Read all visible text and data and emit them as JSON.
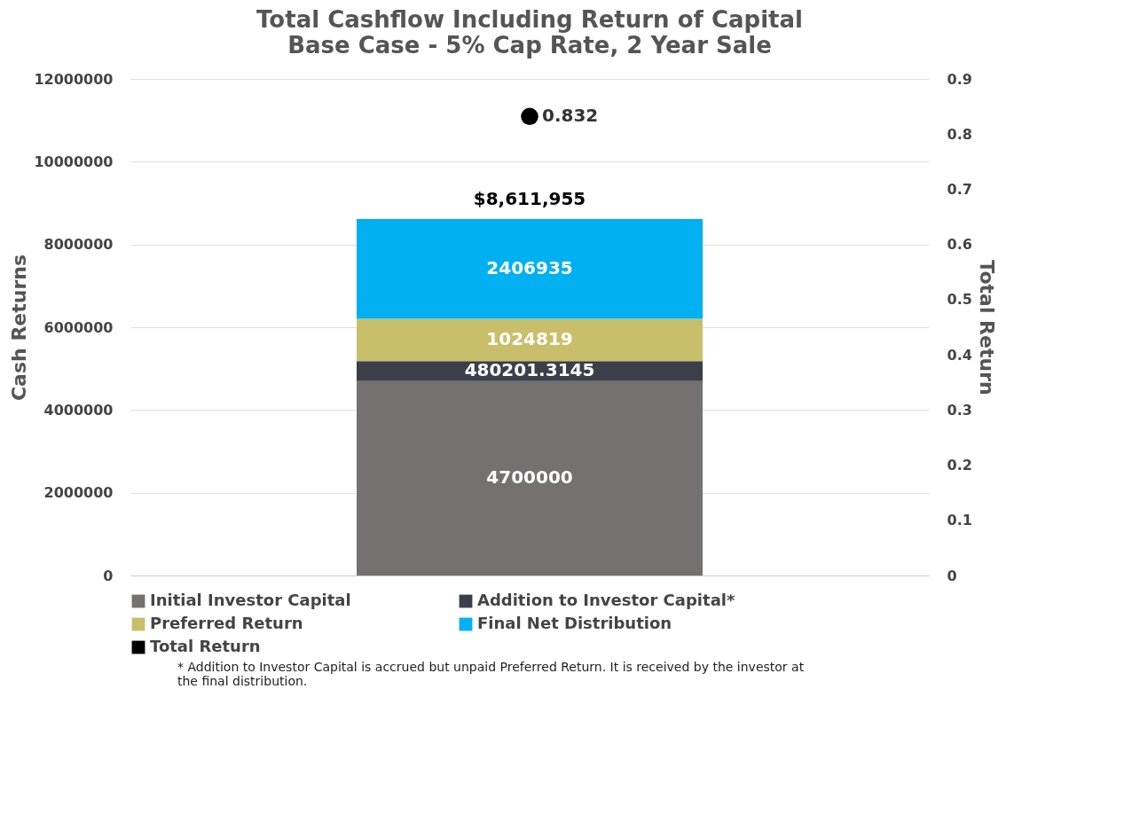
{
  "chart_data": {
    "type": "bar",
    "stacked": true,
    "title": "Total Cashflow Including Return of Capital",
    "subtitle": "Base Case - 5% Cap Rate, 2 Year Sale",
    "ylabel": "Cash Returns",
    "y2label": "Total Return",
    "categories": [
      null
    ],
    "series": [
      {
        "name": "Initial Investor Capital",
        "color": "#757171",
        "values": [
          4700000
        ]
      },
      {
        "name": "Addition to Investor Capital*",
        "color": "#3b3f4a",
        "values": [
          480201.3145
        ]
      },
      {
        "name": "Preferred Return",
        "color": "#c9bf6b",
        "values": [
          1024819
        ]
      },
      {
        "name": "Final Net Distribution",
        "color": "#00b0f0",
        "values": [
          2406935
        ]
      },
      {
        "name": "Total Return",
        "type": "scatter",
        "axis": "y2",
        "color": "#000000",
        "values": [
          0.832
        ]
      }
    ],
    "ylim": [
      0,
      12000000
    ],
    "yticks": [
      0,
      2000000,
      4000000,
      6000000,
      8000000,
      10000000,
      12000000
    ],
    "y2lim": [
      0,
      0.9
    ],
    "y2ticks": [
      0,
      0.1,
      0.2,
      0.3,
      0.4,
      0.5,
      0.6,
      0.7,
      0.8,
      0.9
    ],
    "data_labels": true,
    "totals": [
      "$8,611,955"
    ],
    "grid": "y",
    "legend": "bottom",
    "marker": "circle",
    "annotations": [
      "* Addition to Investor Capital is accrued but unpaid Preferred Return. It is received by the investor at the final distribution."
    ]
  }
}
